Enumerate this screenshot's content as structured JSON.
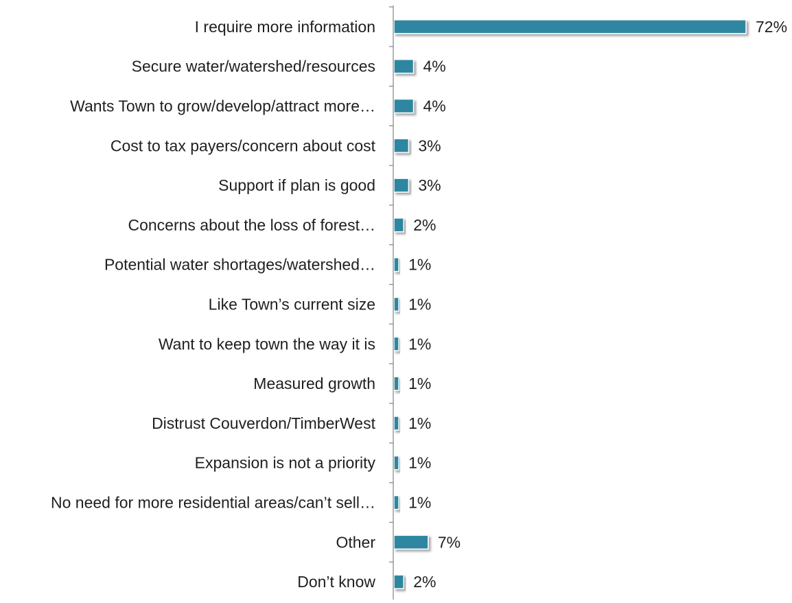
{
  "chart_data": {
    "type": "bar",
    "orientation": "horizontal",
    "categories": [
      "I require more information",
      "Secure water/watershed/resources",
      "Wants Town to grow/develop/attract more…",
      "Cost to tax payers/concern about cost",
      "Support if plan is good",
      "Concerns about the loss of forest…",
      "Potential water shortages/watershed…",
      "Like Town’s current size",
      "Want to keep town the way it is",
      "Measured growth",
      "Distrust Couverdon/TimberWest",
      "Expansion is not a priority",
      "No need for more residential areas/can’t sell…",
      "Other",
      "Don’t know"
    ],
    "values": [
      72,
      4,
      4,
      3,
      3,
      2,
      1,
      1,
      1,
      1,
      1,
      1,
      1,
      7,
      2
    ],
    "value_labels": [
      "72%",
      "4%",
      "4%",
      "3%",
      "3%",
      "2%",
      "1%",
      "1%",
      "1%",
      "1%",
      "1%",
      "1%",
      "1%",
      "7%",
      "2%"
    ],
    "xlim": [
      0,
      72
    ],
    "bar_color": "#2e86a0",
    "title": "",
    "xlabel": "",
    "ylabel": "",
    "grid": false,
    "legend": "none"
  }
}
